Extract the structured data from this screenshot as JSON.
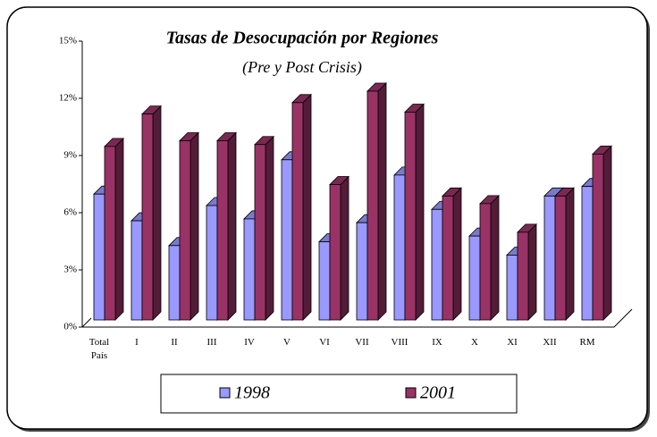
{
  "chart_data": {
    "type": "bar3d",
    "title": "Tasas de Desocupación por Regiones",
    "subtitle": "(Pre y Post Crisis)",
    "categories": [
      "Total País",
      "I",
      "II",
      "III",
      "IV",
      "V",
      "VI",
      "VII",
      "VIII",
      "IX",
      "X",
      "XI",
      "XII",
      "RM"
    ],
    "series": [
      {
        "name": "1998",
        "color": "#9999ff",
        "values": [
          6.6,
          5.2,
          3.9,
          6.0,
          5.3,
          8.4,
          4.1,
          5.1,
          7.6,
          5.8,
          4.4,
          3.4,
          6.5,
          7.0
        ]
      },
      {
        "name": "2001",
        "color": "#993366",
        "values": [
          9.1,
          10.8,
          9.4,
          9.4,
          9.2,
          11.4,
          7.1,
          12.0,
          10.9,
          6.5,
          6.1,
          4.6,
          6.5,
          8.7
        ]
      }
    ],
    "ylim": [
      0,
      15
    ],
    "yticks": [
      {
        "value": 0,
        "label": "0%"
      },
      {
        "value": 3,
        "label": "3%"
      },
      {
        "value": 6,
        "label": "6%"
      },
      {
        "value": 9,
        "label": "9%"
      },
      {
        "value": 12,
        "label": "12%"
      },
      {
        "value": 15,
        "label": "15%"
      }
    ],
    "legend": "bottom"
  }
}
